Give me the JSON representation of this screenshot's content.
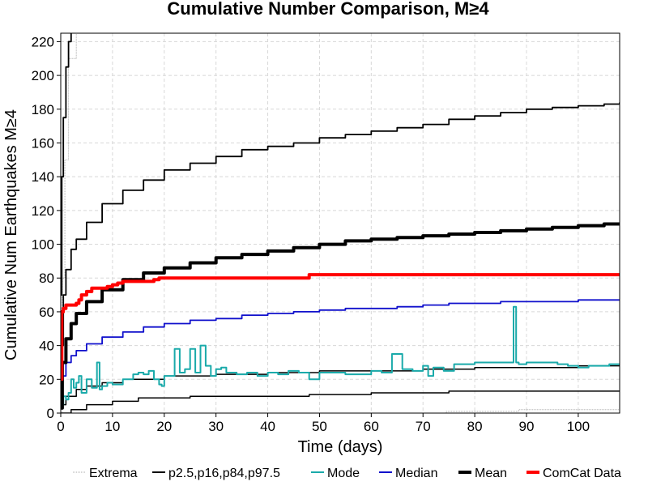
{
  "chart_data": {
    "type": "line",
    "title": "Cumulative Number Comparison, M≥4",
    "xlabel": "Time (days)",
    "ylabel": "Cumulative Num Earthquakes M≥4",
    "xlim": [
      0,
      108
    ],
    "ylim": [
      0,
      225
    ],
    "xticks": [
      0,
      10,
      20,
      30,
      40,
      50,
      60,
      70,
      80,
      90,
      100
    ],
    "yticks": [
      0,
      20,
      40,
      60,
      80,
      100,
      120,
      140,
      160,
      180,
      200,
      220
    ],
    "grid": true,
    "legend_position": "bottom",
    "series": [
      {
        "name": "Extrema",
        "key": "extrema_low",
        "color": "#aaaaaa",
        "width": 1,
        "dash": "1,1",
        "x": [
          0,
          74,
          74.5,
          88,
          88.5,
          108
        ],
        "y": [
          0,
          0,
          1,
          1,
          2,
          2
        ]
      },
      {
        "name": "Extrema",
        "key": "extrema_high",
        "color": "#aaaaaa",
        "width": 1,
        "dash": "1,1",
        "x": [
          0,
          0.3,
          0.8,
          1.5,
          3
        ],
        "y": [
          0,
          80,
          150,
          210,
          260
        ]
      },
      {
        "name": "p2.5,p16,p84,p97.5",
        "key": "p2_5",
        "color": "#000000",
        "width": 1.5,
        "x": [
          0,
          2,
          5,
          10,
          15,
          25,
          35,
          48,
          60,
          75,
          90,
          108
        ],
        "y": [
          0,
          2,
          5,
          7,
          9,
          10,
          10,
          11,
          12,
          13,
          13,
          13
        ]
      },
      {
        "name": "p2.5,p16,p84,p97.5",
        "key": "p16",
        "color": "#000000",
        "width": 1.5,
        "x": [
          0,
          1,
          3,
          5,
          8,
          12,
          20,
          30,
          40,
          50,
          60,
          70,
          80,
          90,
          100,
          108
        ],
        "y": [
          5,
          10,
          14,
          16,
          18,
          20,
          22,
          23,
          24,
          25,
          25,
          26,
          27,
          27,
          28,
          28
        ]
      },
      {
        "name": "p2.5,p16,p84,p97.5",
        "key": "p84",
        "color": "#000000",
        "width": 1.8,
        "x": [
          0,
          0.5,
          1,
          2,
          3,
          5,
          8,
          12,
          16,
          20,
          25,
          30,
          35,
          40,
          45,
          50,
          55,
          60,
          65,
          70,
          75,
          80,
          85,
          90,
          95,
          100,
          105,
          108
        ],
        "y": [
          40,
          70,
          85,
          97,
          103,
          113,
          124,
          132,
          138,
          144,
          148,
          152,
          156,
          158,
          160,
          163,
          165,
          167,
          169,
          171,
          174,
          176,
          178,
          180,
          181,
          182,
          183,
          184
        ]
      },
      {
        "name": "p2.5,p16,p84,p97.5",
        "key": "p97_5",
        "color": "#000000",
        "width": 1.8,
        "x": [
          0,
          0.2,
          0.5,
          1,
          1.5,
          2
        ],
        "y": [
          70,
          140,
          175,
          205,
          220,
          230
        ]
      },
      {
        "name": "Mode",
        "key": "mode",
        "color": "#1aaaaa",
        "width": 2,
        "x": [
          0,
          0.5,
          1,
          1.5,
          2,
          2.5,
          3,
          3.5,
          4,
          5,
          6,
          7,
          7.5,
          8,
          9,
          10,
          12,
          14,
          15,
          16,
          17,
          18,
          19,
          19.5,
          20,
          22,
          23,
          24,
          25,
          26,
          27,
          28,
          29,
          30,
          31,
          32,
          34,
          36,
          38,
          40,
          42,
          44,
          46,
          48,
          50,
          55,
          60,
          62,
          64,
          66,
          68,
          70,
          71,
          72,
          74,
          76,
          80,
          86,
          87.5,
          88,
          88.5,
          90,
          94,
          96,
          98,
          100,
          102,
          104,
          106,
          108
        ],
        "y": [
          5,
          10,
          8,
          12,
          20,
          15,
          18,
          22,
          12,
          20,
          15,
          30,
          14,
          16,
          18,
          17,
          20,
          23,
          24,
          23,
          25,
          20,
          17,
          16,
          22,
          38,
          24,
          26,
          38,
          24,
          40,
          28,
          22,
          26,
          27,
          24,
          23,
          24,
          22,
          24,
          23,
          25,
          24,
          20,
          24,
          23,
          25,
          24,
          35,
          26,
          25,
          28,
          22,
          27,
          25,
          29,
          30,
          30,
          63,
          30,
          29,
          30,
          30,
          29,
          28,
          27,
          28,
          28,
          29,
          29
        ]
      },
      {
        "name": "Median",
        "key": "median",
        "color": "#1010cc",
        "width": 1.8,
        "x": [
          0,
          0.3,
          1,
          2,
          3,
          5,
          8,
          12,
          16,
          20,
          25,
          30,
          35,
          40,
          45,
          50,
          55,
          60,
          65,
          70,
          75,
          80,
          85,
          90,
          95,
          100,
          105,
          108
        ],
        "y": [
          16,
          22,
          30,
          34,
          37,
          41,
          45,
          48,
          51,
          53,
          55,
          56,
          58,
          59,
          60,
          61,
          62,
          62,
          63,
          64,
          65,
          65,
          66,
          66,
          66,
          67,
          67,
          67
        ]
      },
      {
        "name": "Mean",
        "key": "mean",
        "color": "#000000",
        "width": 4,
        "x": [
          0,
          0.3,
          1,
          2,
          3,
          5,
          8,
          12,
          16,
          20,
          25,
          30,
          35,
          40,
          45,
          50,
          55,
          60,
          65,
          70,
          75,
          80,
          85,
          90,
          95,
          100,
          105,
          108
        ],
        "y": [
          3,
          30,
          44,
          53,
          59,
          66,
          73,
          79,
          83,
          86,
          89,
          92,
          94,
          96,
          98,
          100,
          102,
          103,
          104,
          105,
          106,
          107,
          108,
          109,
          110,
          111,
          112,
          112
        ]
      },
      {
        "name": "ComCat Data",
        "key": "comcat",
        "color": "#ff0000",
        "width": 4,
        "x": [
          0,
          0.2,
          0.5,
          1,
          2,
          3,
          3.5,
          4,
          5,
          6,
          7,
          9,
          10,
          11,
          12,
          14,
          16,
          18,
          19,
          20,
          30,
          47,
          48,
          60,
          108
        ],
        "y": [
          20,
          60,
          62,
          64,
          64,
          65,
          67,
          70,
          72,
          74,
          74,
          75,
          76,
          77,
          78,
          78,
          78,
          79,
          80,
          80,
          80,
          80,
          82,
          82,
          82
        ]
      }
    ],
    "legend": [
      {
        "label": "Extrema",
        "color": "#aaaaaa",
        "width": 1,
        "dash": "1,1"
      },
      {
        "label": "p2.5,p16,p84,p97.5",
        "color": "#000000",
        "width": 2,
        "dash": ""
      },
      {
        "label": "Mode",
        "color": "#1aaaaa",
        "width": 2,
        "dash": ""
      },
      {
        "label": "Median",
        "color": "#1010cc",
        "width": 2,
        "dash": ""
      },
      {
        "label": "Mean",
        "color": "#000000",
        "width": 4,
        "dash": ""
      },
      {
        "label": "ComCat Data",
        "color": "#ff0000",
        "width": 4,
        "dash": ""
      }
    ]
  }
}
